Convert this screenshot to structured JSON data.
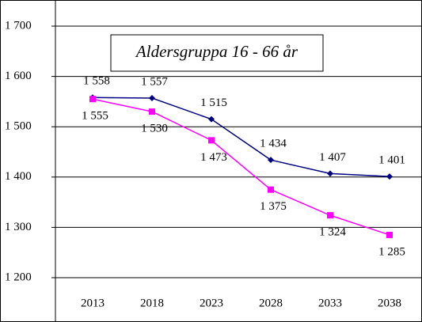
{
  "chart_data": {
    "type": "line",
    "title": "Aldersgruppa 16 - 66 år",
    "categories": [
      "2013",
      "2018",
      "2023",
      "2028",
      "2033",
      "2038"
    ],
    "series": [
      {
        "color": "#000080",
        "marker": "diamond",
        "values": [
          1558,
          1557,
          1515,
          1434,
          1407,
          1401
        ],
        "value_labels": [
          "1 558",
          "1 557",
          "1 515",
          "1 434",
          "1 407",
          "1 401"
        ]
      },
      {
        "color": "#ff00ff",
        "marker": "square",
        "values": [
          1555,
          1530,
          1473,
          1375,
          1324,
          1285
        ],
        "value_labels": [
          "1 555",
          "1 530",
          "1 473",
          "1 375",
          "1 324",
          "1 285"
        ]
      }
    ],
    "ylim": [
      1200,
      1700
    ],
    "yticks": [
      {
        "value": 1200,
        "label": "1 200"
      },
      {
        "value": 1300,
        "label": "1 300"
      },
      {
        "value": 1400,
        "label": "1 400"
      },
      {
        "value": 1500,
        "label": "1 500"
      },
      {
        "value": 1600,
        "label": "1 600"
      },
      {
        "value": 1700,
        "label": "1 700"
      }
    ],
    "grid": true
  }
}
